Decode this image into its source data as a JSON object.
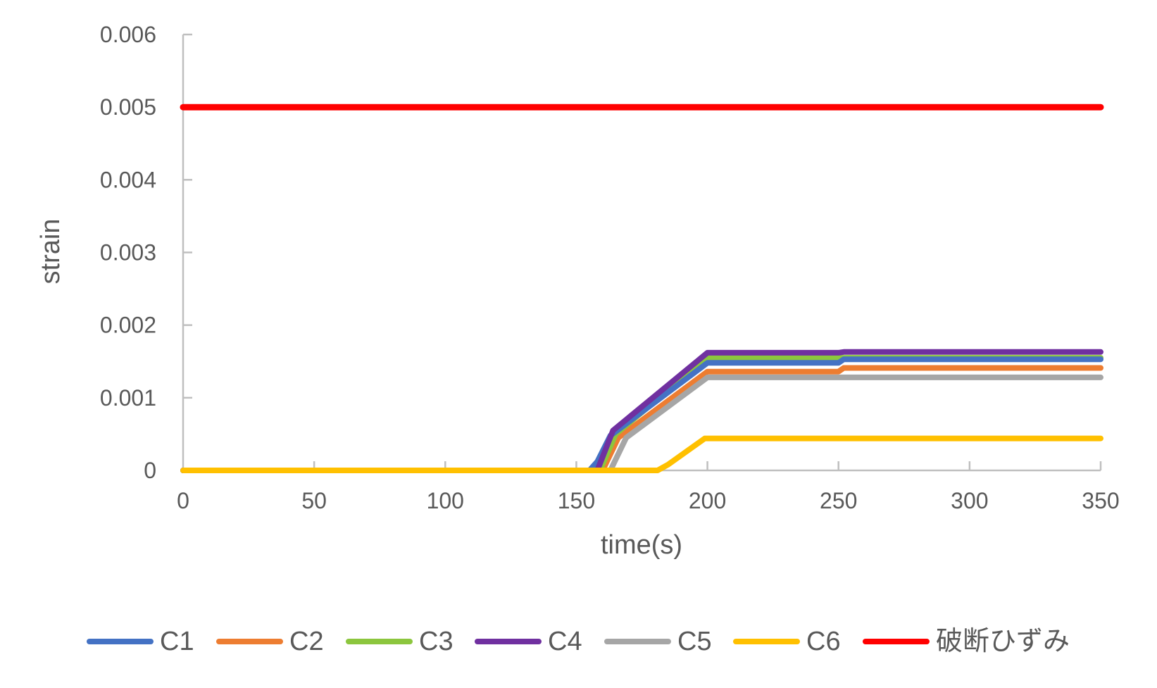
{
  "chart_data": {
    "type": "line",
    "title": "",
    "xlabel": "time(s)",
    "ylabel": "strain",
    "xlim": [
      0,
      350
    ],
    "ylim": [
      0,
      0.006
    ],
    "grid": false,
    "legend_position": "bottom",
    "x_ticks": [
      0,
      50,
      100,
      150,
      200,
      250,
      300,
      350
    ],
    "x_tick_labels": [
      "0",
      "50",
      "100",
      "150",
      "200",
      "250",
      "300",
      "350"
    ],
    "y_ticks": [
      0,
      0.001,
      0.002,
      0.003,
      0.004,
      0.005,
      0.006
    ],
    "y_tick_labels": [
      "0",
      "0.001",
      "0.002",
      "0.003",
      "0.004",
      "0.005",
      "0.006"
    ],
    "axis_color": "#BFBFBF",
    "text_color": "#595959",
    "series": [
      {
        "name": "C1",
        "color": "#4472C4",
        "points": [
          [
            0,
            0
          ],
          [
            155,
            0
          ],
          [
            158,
            0.00012
          ],
          [
            163,
            0.00048
          ],
          [
            200,
            0.00148
          ],
          [
            250,
            0.00148
          ],
          [
            252,
            0.00153
          ],
          [
            350,
            0.00153
          ]
        ]
      },
      {
        "name": "C2",
        "color": "#ED7D31",
        "points": [
          [
            0,
            0
          ],
          [
            160,
            0
          ],
          [
            166,
            0.00045
          ],
          [
            200,
            0.00136
          ],
          [
            250,
            0.00136
          ],
          [
            252,
            0.00141
          ],
          [
            350,
            0.00141
          ]
        ]
      },
      {
        "name": "C3",
        "color": "#8CC63E",
        "points": [
          [
            0,
            0
          ],
          [
            159,
            0
          ],
          [
            165,
            0.0005
          ],
          [
            200,
            0.00155
          ],
          [
            350,
            0.00155
          ]
        ]
      },
      {
        "name": "C4",
        "color": "#7030A0",
        "points": [
          [
            0,
            0
          ],
          [
            158,
            0
          ],
          [
            164,
            0.00055
          ],
          [
            200,
            0.00162
          ],
          [
            250,
            0.00162
          ],
          [
            252,
            0.00163
          ],
          [
            350,
            0.00163
          ]
        ]
      },
      {
        "name": "C5",
        "color": "#A6A6A6",
        "points": [
          [
            0,
            0
          ],
          [
            163,
            0
          ],
          [
            169,
            0.00045
          ],
          [
            200,
            0.00128
          ],
          [
            350,
            0.00128
          ]
        ]
      },
      {
        "name": "C6",
        "color": "#FFC000",
        "points": [
          [
            0,
            0
          ],
          [
            181,
            0
          ],
          [
            185,
            8e-05
          ],
          [
            199,
            0.00044
          ],
          [
            350,
            0.00044
          ]
        ]
      },
      {
        "name": "破断ひずみ",
        "color": "#FF0000",
        "points": [
          [
            0,
            0.005
          ],
          [
            350,
            0.005
          ]
        ]
      }
    ],
    "draw_order": [
      "C2",
      "C5",
      "C3",
      "C1",
      "C4",
      "C6",
      "破断ひずみ"
    ],
    "line_width": 8,
    "threshold_line_width": 9
  },
  "legend": {
    "items": [
      {
        "label": "C1",
        "color": "#4472C4"
      },
      {
        "label": "C2",
        "color": "#ED7D31"
      },
      {
        "label": "C3",
        "color": "#8CC63E"
      },
      {
        "label": "C4",
        "color": "#7030A0"
      },
      {
        "label": "C5",
        "color": "#A6A6A6"
      },
      {
        "label": "C6",
        "color": "#FFC000"
      },
      {
        "label": "破断ひずみ",
        "color": "#FF0000"
      }
    ]
  }
}
